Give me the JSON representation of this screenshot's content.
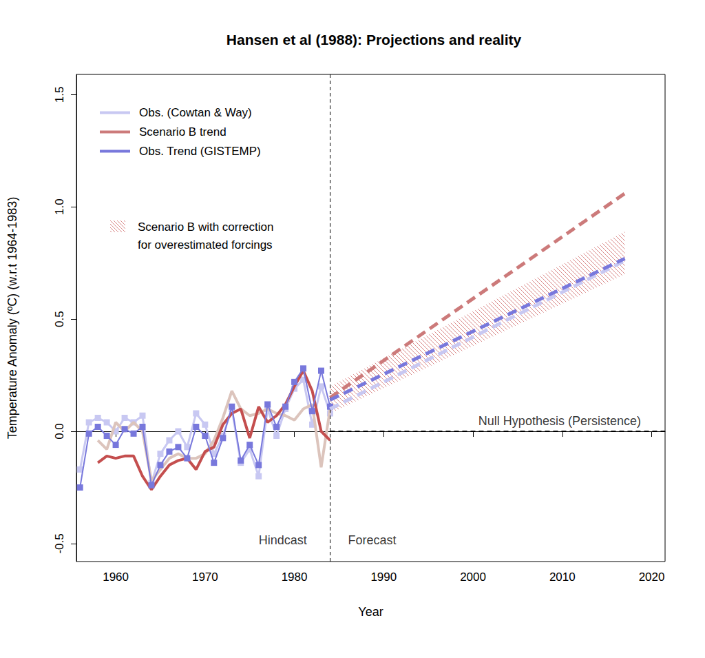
{
  "chart_data": {
    "type": "line",
    "title": "Hansen et al (1988): Projections and reality",
    "x_label": "Year",
    "y_label": "Temperature Anomaly (ºC) (w.r.t 1964-1983)",
    "xlim": [
      1955.6,
      2021.5
    ],
    "xticks": [
      1960,
      1970,
      1980,
      1990,
      2000,
      2010,
      2020
    ],
    "ylim": [
      -0.58,
      1.59
    ],
    "yticks": [
      -0.5,
      {
        "value": 0,
        "label": "0.0"
      },
      0.5,
      {
        "value": 1,
        "label": "1.0"
      },
      1.5
    ],
    "grid": false,
    "legend": "top-left",
    "series": [
      {
        "name": "Obs. (Cowtan & Way)",
        "color": "#c8c8f2",
        "marker": "square",
        "line_style": "solid",
        "x": [
          1956,
          1957,
          1958,
          1959,
          1960,
          1961,
          1962,
          1963,
          1964,
          1965,
          1966,
          1967,
          1968,
          1969,
          1970,
          1971,
          1972,
          1973,
          1974,
          1975,
          1976,
          1977,
          1978,
          1979,
          1980,
          1981,
          1982,
          1983,
          1984
        ],
        "values": [
          -0.17,
          0.04,
          0.06,
          0.04,
          0.0,
          0.06,
          0.04,
          0.07,
          -0.23,
          -0.1,
          -0.04,
          0.0,
          -0.07,
          0.08,
          0.03,
          -0.1,
          -0.02,
          0.1,
          -0.14,
          -0.08,
          -0.2,
          0.1,
          -0.02,
          0.1,
          0.19,
          0.23,
          0.03,
          0.2,
          0.08
        ]
      },
      {
        "color": "#dcc4bc",
        "line_style": "solid",
        "x": [
          1958,
          1959,
          1960,
          1961,
          1962,
          1963,
          1964,
          1965,
          1966,
          1967,
          1968,
          1969,
          1970,
          1971,
          1972,
          1973,
          1974,
          1975,
          1976,
          1977,
          1978,
          1979,
          1980,
          1981,
          1982,
          1983,
          1984
        ],
        "values": [
          -0.04,
          -0.08,
          0.04,
          0.0,
          0.04,
          0.0,
          -0.22,
          -0.17,
          -0.12,
          -0.1,
          -0.12,
          -0.12,
          -0.1,
          -0.04,
          0.06,
          0.18,
          0.1,
          0.07,
          0.08,
          0.1,
          0.08,
          0.07,
          0.05,
          0.1,
          0.12,
          -0.16,
          0.1
        ]
      },
      {
        "color": "#c44e4e",
        "line_style": "solid",
        "x": [
          1958,
          1959,
          1960,
          1961,
          1962,
          1963,
          1964,
          1965,
          1966,
          1967,
          1968,
          1969,
          1970,
          1971,
          1972,
          1973,
          1974,
          1975,
          1976,
          1977,
          1978,
          1979,
          1980,
          1981,
          1982,
          1983,
          1984
        ],
        "values": [
          -0.14,
          -0.11,
          -0.12,
          -0.11,
          -0.11,
          -0.2,
          -0.26,
          -0.2,
          -0.15,
          -0.13,
          -0.12,
          -0.17,
          -0.09,
          -0.07,
          0.03,
          0.08,
          0.1,
          -0.03,
          0.11,
          0.04,
          0.07,
          0.12,
          0.2,
          0.27,
          0.18,
          0.0,
          -0.04
        ]
      },
      {
        "color": "#7878dc",
        "marker": "square",
        "line_style": "solid",
        "x": [
          1956,
          1957,
          1958,
          1959,
          1960,
          1961,
          1962,
          1963,
          1964,
          1965,
          1966,
          1967,
          1968,
          1969,
          1970,
          1971,
          1972,
          1973,
          1974,
          1975,
          1976,
          1977,
          1978,
          1979,
          1980,
          1981,
          1982,
          1983,
          1984
        ],
        "values": [
          -0.25,
          -0.01,
          0.02,
          -0.02,
          -0.06,
          0.01,
          -0.01,
          0.02,
          -0.24,
          -0.15,
          -0.09,
          -0.07,
          -0.12,
          0.02,
          -0.02,
          -0.14,
          -0.03,
          0.11,
          -0.13,
          -0.06,
          -0.15,
          0.12,
          0.02,
          0.11,
          0.22,
          0.28,
          0.09,
          0.27,
          0.11
        ]
      },
      {
        "name": "Scenario B trend",
        "color": "#cc7a7a",
        "line_style": "dashed",
        "x": [
          1984,
          2017
        ],
        "values": [
          0.15,
          1.06
        ]
      },
      {
        "color": "#c8c8f2",
        "line_style": "dashed",
        "x": [
          1984,
          2017
        ],
        "values": [
          0.1,
          0.76
        ]
      },
      {
        "name": "Obs. Trend (GISTEMP)",
        "color": "#7878dc",
        "line_style": "dashed",
        "x": [
          1984,
          2017
        ],
        "values": [
          0.14,
          0.77
        ]
      },
      {
        "color": "#000000",
        "line_style": "dashed",
        "x": [
          1984,
          2021.5
        ],
        "values": [
          0,
          0
        ]
      }
    ],
    "band": {
      "name": "Scenario B with correction\nfor overestimated forcings",
      "color": "#d98888",
      "x": [
        1984,
        2017
      ],
      "lower": [
        0.08,
        0.7
      ],
      "upper": [
        0.2,
        0.89
      ]
    },
    "reference_lines": [
      {
        "x": 1984,
        "line_style": "dashed"
      }
    ],
    "annotations": [
      {
        "text": "Hindcast",
        "x": 1978.7,
        "y": -0.484
      },
      {
        "text": "Forecast",
        "x": 1988.7,
        "y": -0.484
      },
      {
        "text": "Null Hypothesis (Persistence)",
        "x": 2009.7,
        "y": 0.046
      }
    ]
  }
}
